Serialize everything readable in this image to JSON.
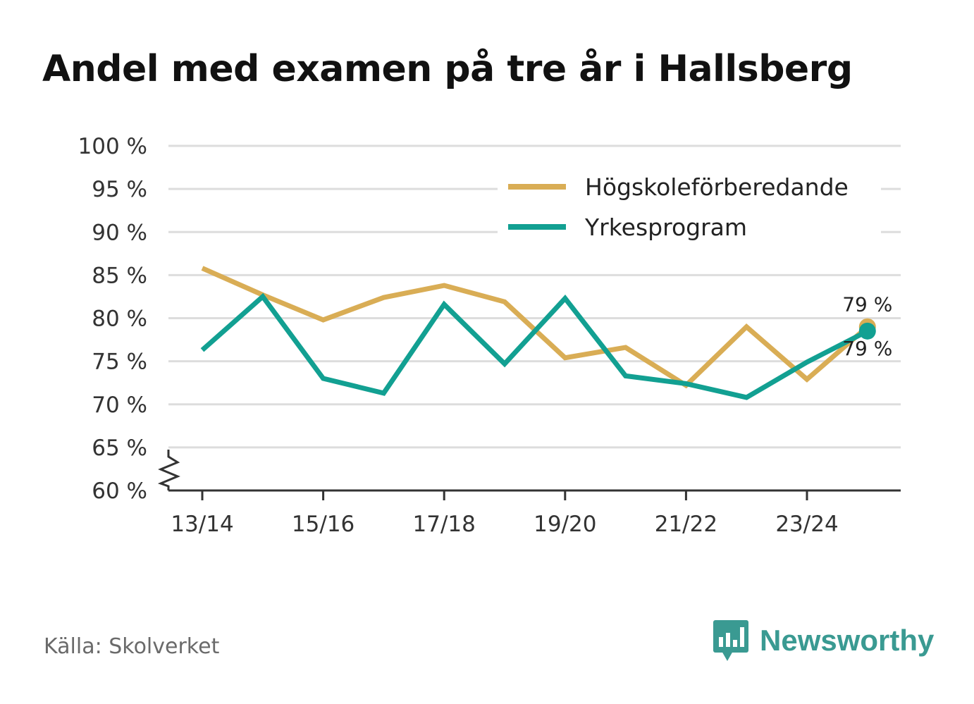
{
  "title": "Andel med examen på tre år i Hallsberg",
  "source": "Källa: Skolverket",
  "brand": {
    "name": "Newsworthy",
    "icon": "newsworthy-logo-icon"
  },
  "colors": {
    "hogskole": "#d9ad55",
    "yrke": "#12a092",
    "grid": "#dddddd",
    "axis": "#333333",
    "brand": "#3a9a92"
  },
  "chart_data": {
    "type": "line",
    "title": "Andel med examen på tre år i Hallsberg",
    "xlabel": "",
    "ylabel": "",
    "x": [
      "13/14",
      "14/15",
      "15/16",
      "16/17",
      "17/18",
      "18/19",
      "19/20",
      "20/21",
      "21/22",
      "22/23",
      "23/24",
      "24/25"
    ],
    "xticks": [
      "13/14",
      "15/16",
      "17/18",
      "19/20",
      "21/22",
      "23/24"
    ],
    "yticks": [
      60,
      65,
      70,
      75,
      80,
      85,
      90,
      95,
      100
    ],
    "ytick_labels": [
      "60 %",
      "65 %",
      "70 %",
      "75 %",
      "80 %",
      "85 %",
      "90 %",
      "95 %",
      "100 %"
    ],
    "ylim": [
      60,
      100
    ],
    "axis_break": true,
    "grid": true,
    "legend_position": "top-right",
    "series": [
      {
        "name": "Högskoleförberedande",
        "color": "#d9ad55",
        "values": [
          85.8,
          82.7,
          79.8,
          82.4,
          83.8,
          81.9,
          75.4,
          76.6,
          72.2,
          79.0,
          72.9,
          79.0
        ],
        "end_label": "79 %"
      },
      {
        "name": "Yrkesprogram",
        "color": "#12a092",
        "values": [
          76.3,
          82.5,
          73.0,
          71.3,
          81.6,
          74.7,
          82.3,
          73.3,
          72.4,
          70.8,
          74.9,
          78.5
        ],
        "end_label": "79 %"
      }
    ]
  }
}
